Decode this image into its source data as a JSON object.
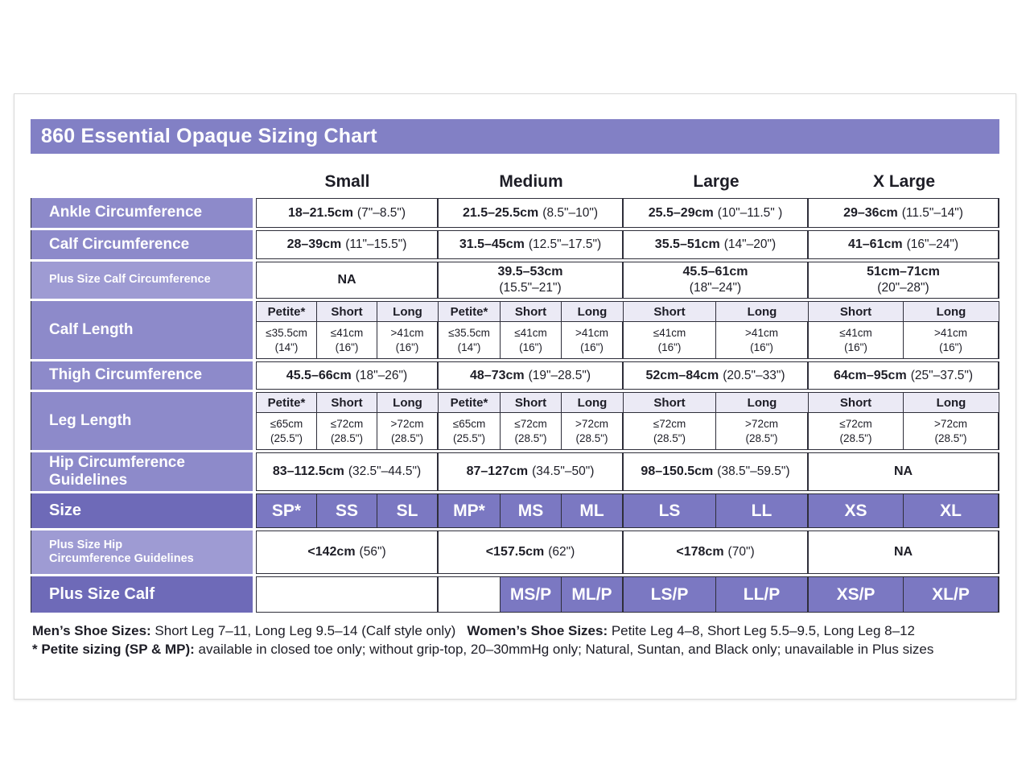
{
  "title": "860 Essential Opaque Sizing Chart",
  "colors": {
    "title_bar": "#8280c5",
    "row_label": "#8d8aca",
    "row_label_light": "#9e9bd3",
    "row_label_dark": "#6e6ab8",
    "size_cell": "#7b78c2",
    "subheader_bg": "#ebeaf5",
    "border": "#2e2e3a"
  },
  "columns": [
    "Small",
    "Medium",
    "Large",
    "X Large"
  ],
  "rows": {
    "ankle": {
      "label": "Ankle Circumference",
      "small": {
        "b": "18–21.5cm",
        "r": "(7\"–8.5\")"
      },
      "medium": {
        "b": "21.5–25.5cm",
        "r": "(8.5\"–10\")"
      },
      "large": {
        "b": "25.5–29cm",
        "r": "(10\"–11.5\" )"
      },
      "xlarge": {
        "b": "29–36cm",
        "r": "(11.5\"–14\")"
      }
    },
    "calf": {
      "label": "Calf Circumference",
      "small": {
        "b": "28–39cm",
        "r": "(11\"–15.5\")"
      },
      "medium": {
        "b": "31.5–45cm",
        "r": "(12.5\"–17.5\")"
      },
      "large": {
        "b": "35.5–51cm",
        "r": "(14\"–20\")"
      },
      "xlarge": {
        "b": "41–61cm",
        "r": "(16\"–24\")"
      }
    },
    "plus_calf": {
      "label": "Plus Size Calf Circumference",
      "small": {
        "b": "NA",
        "r": ""
      },
      "medium": {
        "b": "39.5–53cm",
        "r": "(15.5\"–21\")"
      },
      "large": {
        "b": "45.5–61cm",
        "r": "(18\"–24\")"
      },
      "xlarge": {
        "b": "51cm–71cm",
        "r": "(20\"–28\")"
      }
    },
    "calf_length": {
      "label": "Calf Length",
      "headers": [
        "Petite*",
        "Short",
        "Long",
        "Petite*",
        "Short",
        "Long",
        "Short",
        "Long",
        "Short",
        "Long"
      ],
      "values": [
        {
          "l1": "≤35.5cm",
          "l2": "(14\")"
        },
        {
          "l1": "≤41cm",
          "l2": "(16\")"
        },
        {
          "l1": ">41cm",
          "l2": "(16\")"
        },
        {
          "l1": "≤35.5cm",
          "l2": "(14\")"
        },
        {
          "l1": "≤41cm",
          "l2": "(16\")"
        },
        {
          "l1": ">41cm",
          "l2": "(16\")"
        },
        {
          "l1": "≤41cm",
          "l2": "(16\")"
        },
        {
          "l1": ">41cm",
          "l2": "(16\")"
        },
        {
          "l1": "≤41cm",
          "l2": "(16\")"
        },
        {
          "l1": ">41cm",
          "l2": "(16\")"
        }
      ]
    },
    "thigh": {
      "label": "Thigh Circumference",
      "small": {
        "b": "45.5–66cm",
        "r": "(18\"–26\")"
      },
      "medium": {
        "b": "48–73cm",
        "r": "(19\"–28.5\")"
      },
      "large": {
        "b": "52cm–84cm",
        "r": "(20.5\"–33\")"
      },
      "xlarge": {
        "b": "64cm–95cm",
        "r": "(25\"–37.5\")"
      }
    },
    "leg_length": {
      "label": "Leg Length",
      "headers": [
        "Petite*",
        "Short",
        "Long",
        "Petite*",
        "Short",
        "Long",
        "Short",
        "Long",
        "Short",
        "Long"
      ],
      "values": [
        {
          "l1": "≤65cm",
          "l2": "(25.5\")"
        },
        {
          "l1": "≤72cm",
          "l2": "(28.5\")"
        },
        {
          "l1": ">72cm",
          "l2": "(28.5\")"
        },
        {
          "l1": "≤65cm",
          "l2": "(25.5\")"
        },
        {
          "l1": "≤72cm",
          "l2": "(28.5\")"
        },
        {
          "l1": ">72cm",
          "l2": "(28.5\")"
        },
        {
          "l1": "≤72cm",
          "l2": "(28.5\")"
        },
        {
          "l1": ">72cm",
          "l2": "(28.5\")"
        },
        {
          "l1": "≤72cm",
          "l2": "(28.5\")"
        },
        {
          "l1": ">72cm",
          "l2": "(28.5\")"
        }
      ]
    },
    "hip": {
      "label_l1": "Hip Circumference",
      "label_l2": "Guidelines",
      "small": {
        "b": "83–112.5cm",
        "r": "(32.5\"–44.5\")"
      },
      "medium": {
        "b": "87–127cm",
        "r": "(34.5\"–50\")"
      },
      "large": {
        "b": "98–150.5cm",
        "r": "(38.5\"–59.5\")"
      },
      "xlarge": {
        "b": "NA",
        "r": ""
      }
    },
    "size": {
      "label": "Size",
      "values": [
        "SP*",
        "SS",
        "SL",
        "MP*",
        "MS",
        "ML",
        "LS",
        "LL",
        "XS",
        "XL"
      ]
    },
    "plus_hip": {
      "label_l1": "Plus Size Hip",
      "label_l2": "Circumference Guidelines",
      "small": {
        "b": "<142cm",
        "r": "(56\")"
      },
      "medium": {
        "b": "<157.5cm",
        "r": "(62\")"
      },
      "large": {
        "b": "<178cm",
        "r": "(70\")"
      },
      "xlarge": {
        "b": "NA",
        "r": ""
      }
    },
    "plus_size_calf": {
      "label": "Plus Size Calf",
      "values": [
        "MS/P",
        "ML/P",
        "LS/P",
        "LL/P",
        "XS/P",
        "XL/P"
      ]
    }
  },
  "footnotes": {
    "line1": [
      {
        "b": "Men’s Shoe Sizes:",
        "t": " Short Leg 7–11, Long Leg 9.5–14 (Calf style only)"
      },
      {
        "b": "Women’s Shoe Sizes:",
        "t": " Petite Leg 4–8,  Short Leg 5.5–9.5, Long Leg 8–12"
      }
    ],
    "line2": [
      {
        "b": "* Petite sizing (SP & MP):",
        "t": " available in closed toe only; without grip-top, 20–30mmHg only; Natural, Suntan, and Black only; unavailable in Plus sizes"
      }
    ]
  }
}
